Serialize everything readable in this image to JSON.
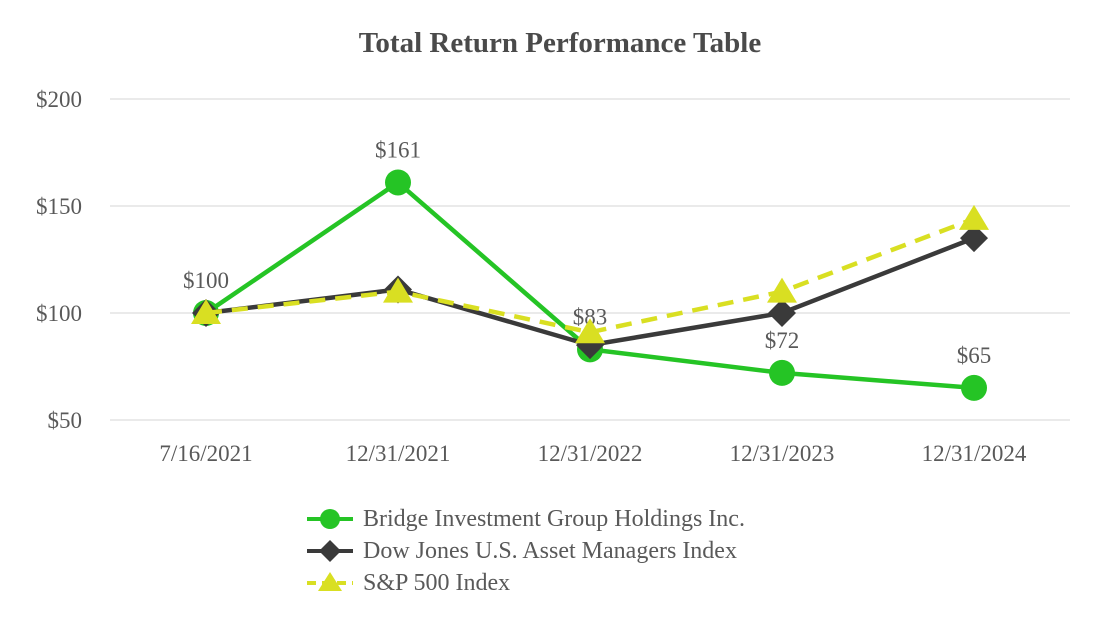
{
  "chart_data": {
    "type": "line",
    "title": "Total Return Performance Table",
    "xlabel": "",
    "ylabel": "",
    "categories": [
      "7/16/2021",
      "12/31/2021",
      "12/31/2022",
      "12/31/2023",
      "12/31/2024"
    ],
    "ylim": [
      50,
      200
    ],
    "y_ticks": [
      {
        "value": 200,
        "label": "$200"
      },
      {
        "value": 150,
        "label": "$150"
      },
      {
        "value": 100,
        "label": "$100"
      },
      {
        "value": 50,
        "label": "$50"
      }
    ],
    "grid": true,
    "legend_position": "bottom-left",
    "series": [
      {
        "name": "Bridge Investment Group Holdings Inc.",
        "color": "#25c425",
        "marker": "circle",
        "line_style": "solid",
        "values": [
          100,
          161,
          83,
          72,
          65
        ],
        "point_labels": [
          "$100",
          "$161",
          "$83",
          "$72",
          "$65"
        ]
      },
      {
        "name": "Dow Jones U.S. Asset Managers Index",
        "color": "#3a3a3a",
        "marker": "diamond",
        "line_style": "solid",
        "values": [
          100,
          111,
          85,
          100,
          135
        ],
        "point_labels": []
      },
      {
        "name": "S&P 500 Index",
        "color": "#d9df22",
        "marker": "triangle",
        "line_style": "dashed",
        "values": [
          100,
          110,
          91,
          110,
          144
        ],
        "point_labels": []
      }
    ],
    "text_color": "#595959",
    "grid_color": "#e3e3e3",
    "title_color": "#4a4a4a"
  }
}
